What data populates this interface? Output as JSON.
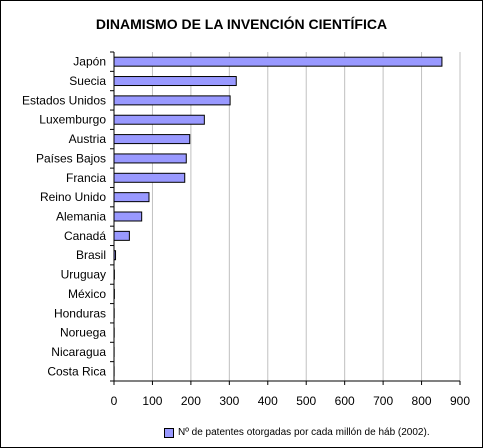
{
  "chart_data": {
    "type": "bar",
    "orientation": "horizontal",
    "title": "DINAMISMO DE LA INVENCIÓN CIENTÍFICA",
    "categories": [
      "Japón",
      "Suecia",
      "Estados Unidos",
      "Luxemburgo",
      "Austria",
      "Países Bajos",
      "Francia",
      "Reino Unido",
      "Alemania",
      "Canadá",
      "Brasil",
      "Uruguay",
      "México",
      "Honduras",
      "Noruega",
      "Nicaragua",
      "Costa Rica"
    ],
    "series": [
      {
        "name": "Nº de patentes otorgadas por cada millón de háb (2002).",
        "values": [
          853,
          318,
          302,
          235,
          197,
          188,
          184,
          91,
          72,
          40,
          4,
          1,
          1,
          0.5,
          0.5,
          0.3,
          0.3
        ]
      }
    ],
    "xlim": [
      0,
      900
    ],
    "xticks": [
      "0",
      "100",
      "200",
      "300",
      "400",
      "500",
      "600",
      "700",
      "800",
      "900"
    ],
    "grid": true,
    "legend_position": "bottom",
    "bar_color": "#9999ff",
    "grid_color": "#c0c0c0"
  }
}
